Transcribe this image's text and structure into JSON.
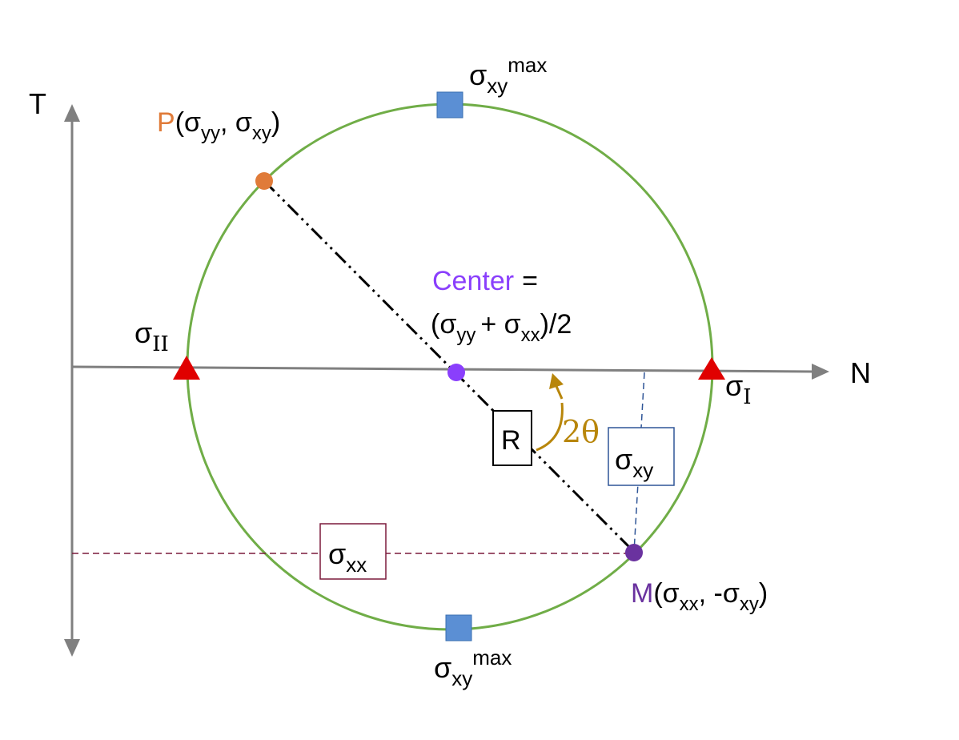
{
  "axes": {
    "horizontal_label": "N",
    "vertical_label": "T"
  },
  "circle": {
    "center_label_word": "Center",
    "center_label_equals": "=",
    "center_formula": {
      "open": "(σ",
      "sub1": "yy",
      "plus": "+ σ",
      "sub2": "xx",
      "close": ")/2"
    },
    "radius_label": "R",
    "angle_label": "2θ"
  },
  "points": {
    "P": {
      "letter": "P",
      "open": "(σ",
      "sub1": "yy",
      "sep": ", σ",
      "sub2": "xy",
      "close": ")"
    },
    "M": {
      "letter": "M",
      "open": "(σ",
      "sub1": "xx",
      "sep": ", -σ",
      "sub2": "xy",
      "close": ")"
    }
  },
  "principal": {
    "minor": {
      "symbol": "σ",
      "subscript": "II"
    },
    "major": {
      "symbol": "σ",
      "subscript": "I"
    }
  },
  "shear_max": {
    "symbol": "σ",
    "subscript": "xy",
    "superscript": "max"
  },
  "boxes": {
    "sigma_xx": {
      "symbol": "σ",
      "subscript": "xx"
    },
    "sigma_xy": {
      "symbol": "σ",
      "subscript": "xy"
    }
  },
  "colors": {
    "circle": "#70ad47",
    "axis": "#808080",
    "point_P": "#e07b39",
    "point_center": "#8a3ffc",
    "point_M": "#6a329f",
    "principal_marker": "#e00000",
    "shear_marker": "#5b8fd4",
    "angle": "#b8860b",
    "sigma_xx_box": "#7b1a3c",
    "sigma_xy_box": "#2f5597"
  }
}
